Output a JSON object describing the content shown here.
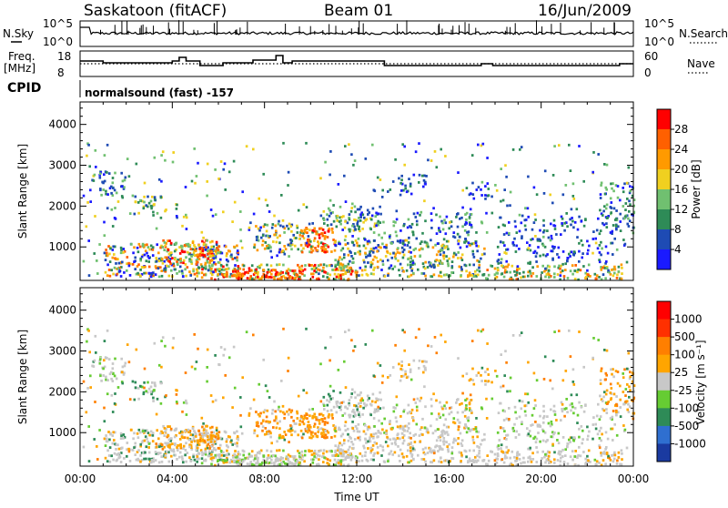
{
  "header": {
    "station": "Saskatoon (fitACF)",
    "beam": "Beam 01",
    "date": "16/Jun/2009"
  },
  "noise_panel": {
    "left_label": "N.Sky",
    "right_label": "N.Search",
    "left_ticks": [
      "10^5",
      "10^0"
    ],
    "right_ticks": [
      "10^5",
      "10^0"
    ]
  },
  "freq_panel": {
    "left_label_1": "Freq.",
    "left_label_2": "[MHz]",
    "right_label": "Nave",
    "left_ticks": [
      "18",
      "8"
    ],
    "right_ticks": [
      "60",
      "0"
    ]
  },
  "cpid_panel": {
    "label": "CPID",
    "program": "normalsound (fast) -157"
  },
  "chart_data": [
    {
      "type": "heatmap",
      "name_key": "power",
      "ylabel": "Slant Range [km]",
      "ylim": [
        180,
        4550
      ],
      "yticks": [
        "1000",
        "2000",
        "3000",
        "4000"
      ],
      "colorbar_label": "Power [dB]",
      "colorbar_ticks": [
        "4",
        "8",
        "12",
        "16",
        "20",
        "24",
        "28"
      ],
      "colors": [
        "#1a1aff",
        "#1e4bb4",
        "#2e8b57",
        "#70c070",
        "#f0d020",
        "#ff9a00",
        "#ff6000",
        "#ff0000"
      ]
    },
    {
      "type": "heatmap",
      "name_key": "velocity",
      "ylabel": "Slant Range [km]",
      "ylim": [
        180,
        4550
      ],
      "yticks": [
        "1000",
        "2000",
        "3000",
        "4000"
      ],
      "xlabel": "Time UT",
      "xticks": [
        "00:00",
        "04:00",
        "08:00",
        "12:00",
        "16:00",
        "20:00",
        "00:00"
      ],
      "xlim_hours": [
        0,
        24
      ],
      "colorbar_label": "Velocity [m s⁻¹]",
      "colorbar_ticks": [
        "1000",
        "500",
        "100",
        "25",
        "-25",
        "-100",
        "-500",
        "-1000"
      ],
      "colors": [
        "#1a3aa0",
        "#2f6fd0",
        "#2e8b57",
        "#66cc33",
        "#c8c8c8",
        "#ffa500",
        "#ff7f00",
        "#ff3000",
        "#ff0000"
      ]
    }
  ]
}
